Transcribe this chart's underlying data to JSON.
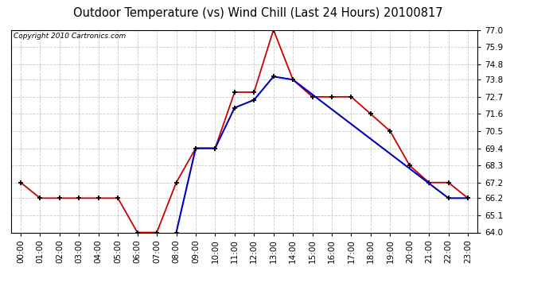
{
  "title": "Outdoor Temperature (vs) Wind Chill (Last 24 Hours) 20100817",
  "copyright": "Copyright 2010 Cartronics.com",
  "x_labels": [
    "00:00",
    "01:00",
    "02:00",
    "03:00",
    "04:00",
    "05:00",
    "06:00",
    "07:00",
    "08:00",
    "09:00",
    "10:00",
    "11:00",
    "12:00",
    "13:00",
    "14:00",
    "15:00",
    "16:00",
    "17:00",
    "18:00",
    "19:00",
    "20:00",
    "21:00",
    "22:00",
    "23:00"
  ],
  "temp_red": [
    67.2,
    66.2,
    66.2,
    66.2,
    66.2,
    66.2,
    64.0,
    64.0,
    67.2,
    69.4,
    69.4,
    73.0,
    73.0,
    77.0,
    73.8,
    72.7,
    72.7,
    72.7,
    71.6,
    70.5,
    68.3,
    67.2,
    67.2,
    66.2
  ],
  "wind_chill_blue": [
    null,
    null,
    null,
    null,
    null,
    null,
    null,
    null,
    64.0,
    69.4,
    69.4,
    72.0,
    72.5,
    74.0,
    73.8,
    null,
    null,
    null,
    null,
    null,
    null,
    null,
    66.2,
    66.2
  ],
  "ylim": [
    64.0,
    77.0
  ],
  "yticks": [
    64.0,
    65.1,
    66.2,
    67.2,
    68.3,
    69.4,
    70.5,
    71.6,
    72.7,
    73.8,
    74.8,
    75.9,
    77.0
  ],
  "bg_color": "#ffffff",
  "grid_color": "#bbbbbb",
  "red_color": "#cc0000",
  "blue_color": "#0000bb",
  "title_fontsize": 10.5,
  "copyright_fontsize": 6.5
}
